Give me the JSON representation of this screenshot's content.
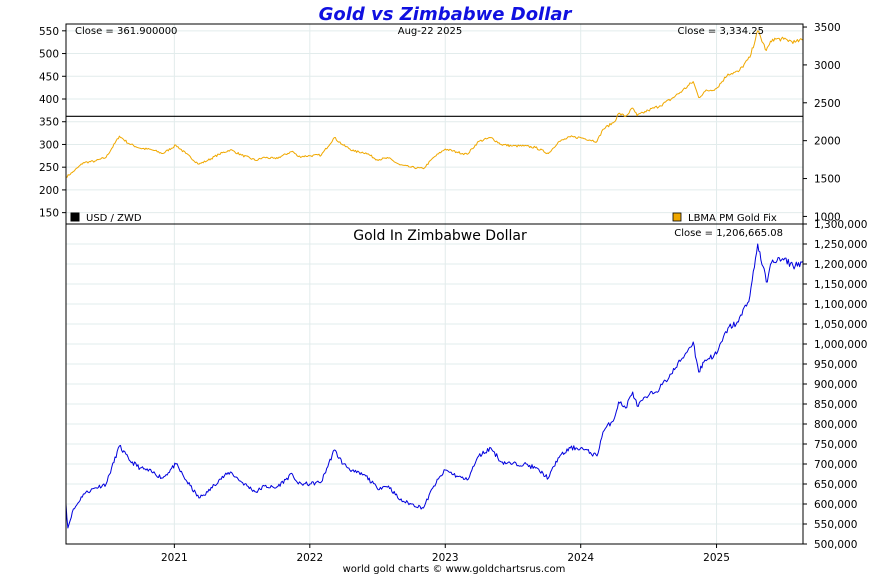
{
  "title": "Gold vs Zimbabwe Dollar",
  "footer": "world gold charts © www.goldchartsrus.com",
  "colors": {
    "title": "#1010e0",
    "gold": "#f0a800",
    "zwd": "#000000",
    "blue": "#0000dd",
    "grid": "#e2ecec"
  },
  "chart_data": [
    {
      "type": "line",
      "panel": "top",
      "title": "",
      "info_left": "Close = 361.900000",
      "info_center": "Aug-22  2025",
      "info_right": "Close = 3,334.25",
      "legend_left": "USD / ZWD",
      "legend_right": "LBMA PM Gold Fix",
      "legend_placement": "bottom-left and bottom-right",
      "x_range": [
        "2020-03-15",
        "2025-08-22"
      ],
      "x_ticks": [
        "2021",
        "2022",
        "2023",
        "2024",
        "2025"
      ],
      "left_axis": {
        "ticks": [
          150,
          200,
          250,
          300,
          350,
          400,
          450,
          500,
          550
        ],
        "ylim": [
          125,
          565
        ]
      },
      "right_axis": {
        "ticks": [
          "1000",
          "1500",
          "2000",
          "2500",
          "3000",
          "3500"
        ],
        "ylim": [
          900,
          3540
        ]
      },
      "grid": true,
      "series": [
        {
          "name": "USD / ZWD",
          "axis": "left",
          "x": [
            "2020-03-15",
            "2025-08-22"
          ],
          "y": [
            361.9,
            361.9
          ]
        },
        {
          "name": "LBMA PM Gold Fix",
          "axis": "right",
          "x": [
            "2020-03-15",
            "2020-04-01",
            "2020-05-01",
            "2020-06-01",
            "2020-07-01",
            "2020-08-06",
            "2020-09-01",
            "2020-10-01",
            "2020-11-01",
            "2020-12-01",
            "2021-01-05",
            "2021-02-01",
            "2021-03-08",
            "2021-04-01",
            "2021-05-01",
            "2021-06-01",
            "2021-07-01",
            "2021-08-09",
            "2021-09-01",
            "2021-10-01",
            "2021-11-15",
            "2021-12-01",
            "2022-01-01",
            "2022-02-01",
            "2022-03-08",
            "2022-04-01",
            "2022-05-01",
            "2022-06-01",
            "2022-07-01",
            "2022-08-01",
            "2022-09-01",
            "2022-10-01",
            "2022-11-03",
            "2022-12-01",
            "2023-01-01",
            "2023-02-01",
            "2023-03-01",
            "2023-04-01",
            "2023-05-04",
            "2023-06-01",
            "2023-07-01",
            "2023-08-01",
            "2023-09-01",
            "2023-10-06",
            "2023-11-01",
            "2023-12-04",
            "2024-01-01",
            "2024-02-14",
            "2024-03-01",
            "2024-04-01",
            "2024-04-12",
            "2024-05-01",
            "2024-05-20",
            "2024-06-01",
            "2024-07-01",
            "2024-08-01",
            "2024-09-01",
            "2024-10-01",
            "2024-10-30",
            "2024-11-14",
            "2024-12-01",
            "2025-01-01",
            "2025-02-01",
            "2025-03-01",
            "2025-04-01",
            "2025-04-22",
            "2025-05-15",
            "2025-06-01",
            "2025-07-01",
            "2025-08-01",
            "2025-08-22"
          ],
          "y": [
            1520,
            1580,
            1710,
            1730,
            1780,
            2060,
            1960,
            1900,
            1880,
            1830,
            1940,
            1830,
            1690,
            1740,
            1820,
            1880,
            1810,
            1740,
            1780,
            1760,
            1860,
            1790,
            1800,
            1810,
            2040,
            1940,
            1860,
            1840,
            1750,
            1770,
            1680,
            1650,
            1630,
            1780,
            1890,
            1850,
            1820,
            1990,
            2040,
            1950,
            1930,
            1930,
            1910,
            1830,
            1980,
            2050,
            2040,
            1990,
            2150,
            2250,
            2360,
            2320,
            2430,
            2330,
            2400,
            2460,
            2550,
            2660,
            2780,
            2570,
            2650,
            2690,
            2880,
            2910,
            3100,
            3450,
            3190,
            3340,
            3340,
            3300,
            3334.25
          ]
        }
      ]
    },
    {
      "type": "line",
      "panel": "bottom",
      "title": "Gold In Zimbabwe Dollar",
      "info_right": "Close = 1,206,665.08",
      "x_range": [
        "2020-03-15",
        "2025-08-22"
      ],
      "x_ticks": [
        "2021",
        "2022",
        "2023",
        "2024",
        "2025"
      ],
      "right_axis": {
        "ticks": [
          "500,000",
          "550,000",
          "600,000",
          "650,000",
          "700,000",
          "750,000",
          "800,000",
          "850,000",
          "900,000",
          "950,000",
          "1,000,000",
          "1,050,000",
          "1,100,000",
          "1,150,000",
          "1,200,000",
          "1,250,000",
          "1,300,000"
        ],
        "ylim": [
          500000,
          1300000
        ]
      },
      "grid": true,
      "series": [
        {
          "name": "Gold In Zimbabwe Dollar",
          "x": [
            "2020-03-15",
            "2020-03-20",
            "2020-04-01",
            "2020-05-01",
            "2020-06-01",
            "2020-07-01",
            "2020-08-06",
            "2020-09-01",
            "2020-10-01",
            "2020-11-01",
            "2020-12-01",
            "2021-01-05",
            "2021-02-01",
            "2021-03-08",
            "2021-04-01",
            "2021-05-01",
            "2021-06-01",
            "2021-07-01",
            "2021-08-09",
            "2021-09-01",
            "2021-10-01",
            "2021-11-15",
            "2021-12-01",
            "2022-01-01",
            "2022-02-01",
            "2022-03-08",
            "2022-04-01",
            "2022-05-01",
            "2022-06-01",
            "2022-07-01",
            "2022-08-01",
            "2022-09-01",
            "2022-10-01",
            "2022-11-03",
            "2022-12-01",
            "2023-01-01",
            "2023-02-01",
            "2023-03-01",
            "2023-04-01",
            "2023-05-04",
            "2023-06-01",
            "2023-07-01",
            "2023-08-01",
            "2023-09-01",
            "2023-10-06",
            "2023-11-01",
            "2023-12-04",
            "2024-01-01",
            "2024-02-14",
            "2024-03-01",
            "2024-04-01",
            "2024-04-12",
            "2024-05-01",
            "2024-05-20",
            "2024-06-01",
            "2024-07-01",
            "2024-08-01",
            "2024-09-01",
            "2024-10-01",
            "2024-10-30",
            "2024-11-14",
            "2024-12-01",
            "2025-01-01",
            "2025-02-01",
            "2025-03-01",
            "2025-04-01",
            "2025-04-22",
            "2025-05-15",
            "2025-06-01",
            "2025-07-01",
            "2025-08-01",
            "2025-08-22"
          ],
          "y": [
            600000,
            540000,
            580000,
            625000,
            640000,
            650000,
            745000,
            710000,
            690000,
            680000,
            665000,
            700000,
            660000,
            615000,
            630000,
            660000,
            680000,
            655000,
            630000,
            645000,
            640000,
            675000,
            650000,
            650000,
            655000,
            735000,
            700000,
            680000,
            670000,
            640000,
            645000,
            610000,
            600000,
            590000,
            645000,
            685000,
            670000,
            660000,
            720000,
            740000,
            705000,
            700000,
            700000,
            690000,
            665000,
            715000,
            740000,
            740000,
            720000,
            780000,
            815000,
            855000,
            840000,
            880000,
            845000,
            870000,
            890000,
            925000,
            965000,
            1005000,
            930000,
            960000,
            975000,
            1040000,
            1055000,
            1120000,
            1250000,
            1155000,
            1210000,
            1210000,
            1195000,
            1206665
          ]
        }
      ]
    }
  ]
}
